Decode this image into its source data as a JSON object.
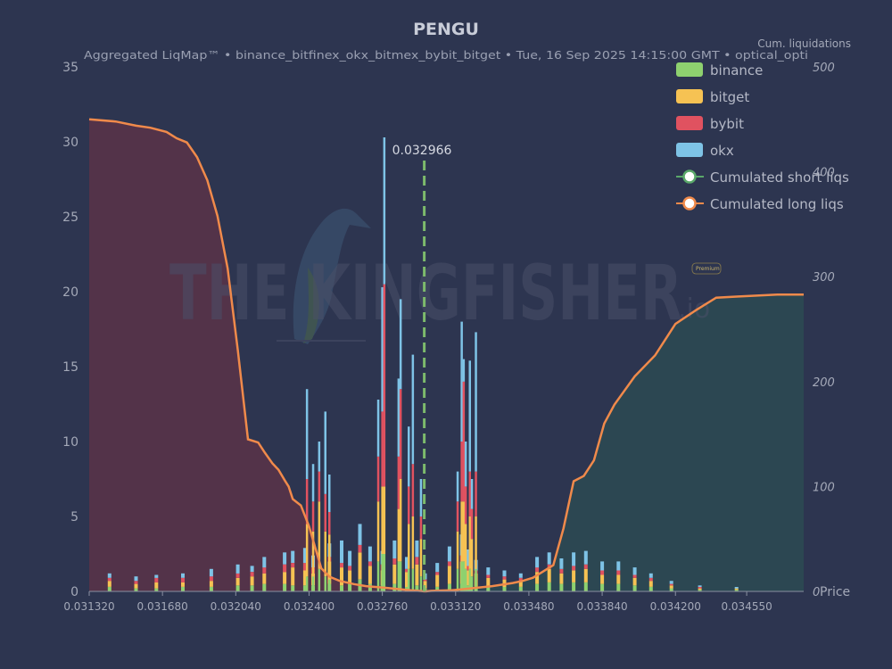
{
  "title": "PENGU",
  "subtitle": "Aggregated LiqMap™  •  binance_bitfinex_okx_bitmex_bybit_bitget  •  Tue, 16 Sep 2025 14:15:00 GMT  •  optical_opti",
  "watermark": {
    "text": "THE KINGFISHER",
    "suffix": ".io",
    "badge": "Premium"
  },
  "colors": {
    "background": "#2d3550",
    "binance": "#8ed16f",
    "bitget": "#f6c253",
    "bybit": "#e05260",
    "okx": "#7ec3e6",
    "cum_line": "#f08a4b",
    "short_fill": "#5b3248",
    "long_fill": "#2d4a52",
    "current_price": "#7dbb6c"
  },
  "chart_data": {
    "type": "bar",
    "x_ticks": [
      "0.031320",
      "0.031680",
      "0.032040",
      "0.032400",
      "0.032760",
      "0.033120",
      "0.033480",
      "0.033840",
      "0.034200",
      "0.034550"
    ],
    "x_tick_values": [
      0.03132,
      0.03168,
      0.03204,
      0.0324,
      0.03276,
      0.03312,
      0.03348,
      0.03384,
      0.0342,
      0.03455
    ],
    "xlim": [
      0.03132,
      0.03483
    ],
    "ylim": [
      0,
      35
    ],
    "y_ticks": [
      "0",
      "5",
      "10",
      "15",
      "20",
      "25",
      "30",
      "35"
    ],
    "y_tick_values": [
      0,
      5,
      10,
      15,
      20,
      25,
      30,
      35
    ],
    "y2_label": "Cum. liquidations",
    "y2_lim": [
      0,
      500
    ],
    "y2_ticks": [
      "0",
      "100",
      "200",
      "300",
      "400",
      "500"
    ],
    "y2_tick_values": [
      0,
      100,
      200,
      300,
      400,
      500
    ],
    "x_axis_end_label": "Price",
    "current_price": {
      "value": 0.032966,
      "label": "0.032966"
    },
    "legend_position": "top-right",
    "legend": [
      {
        "name": "binance",
        "kind": "bar",
        "color_key": "binance"
      },
      {
        "name": "bitget",
        "kind": "bar",
        "color_key": "bitget"
      },
      {
        "name": "bybit",
        "kind": "bar",
        "color_key": "bybit"
      },
      {
        "name": "okx",
        "kind": "bar",
        "color_key": "okx"
      },
      {
        "name": "Cumulated short liqs",
        "kind": "line",
        "ring": "#5aa86a"
      },
      {
        "name": "Cumulated long liqs",
        "kind": "line",
        "ring": "#f08a4b"
      }
    ],
    "bars": [
      {
        "x": 0.03142,
        "binance": 0.3,
        "bitget": 0.4,
        "bybit": 0.2,
        "okx": 0.3
      },
      {
        "x": 0.03155,
        "binance": 0.2,
        "bitget": 0.3,
        "bybit": 0.2,
        "okx": 0.3
      },
      {
        "x": 0.03165,
        "binance": 0.2,
        "bitget": 0.4,
        "bybit": 0.3,
        "okx": 0.2
      },
      {
        "x": 0.03178,
        "binance": 0.3,
        "bitget": 0.3,
        "bybit": 0.3,
        "okx": 0.3
      },
      {
        "x": 0.03192,
        "binance": 0.3,
        "bitget": 0.4,
        "bybit": 0.3,
        "okx": 0.5
      },
      {
        "x": 0.03205,
        "binance": 0.4,
        "bitget": 0.5,
        "bybit": 0.3,
        "okx": 0.6
      },
      {
        "x": 0.03212,
        "binance": 0.4,
        "bitget": 0.6,
        "bybit": 0.3,
        "okx": 0.4
      },
      {
        "x": 0.03218,
        "binance": 0.5,
        "bitget": 0.7,
        "bybit": 0.4,
        "okx": 0.7
      },
      {
        "x": 0.03228,
        "binance": 0.5,
        "bitget": 0.8,
        "bybit": 0.5,
        "okx": 0.8
      },
      {
        "x": 0.03232,
        "binance": 0.4,
        "bitget": 1.2,
        "bybit": 0.3,
        "okx": 0.8
      },
      {
        "x": 0.03238,
        "binance": 0.4,
        "bitget": 1.0,
        "bybit": 0.5,
        "okx": 1.0
      },
      {
        "x": 0.03242,
        "binance": 0.4,
        "bitget": 0.8,
        "bybit": 0.4,
        "okx": 0.8
      },
      {
        "x": 0.0325,
        "binance": 0.5,
        "bitget": 1.5,
        "bybit": 0.3,
        "okx": 0.9
      },
      {
        "x": 0.03256,
        "binance": 0.4,
        "bitget": 1.2,
        "bybit": 0.3,
        "okx": 1.5
      },
      {
        "x": 0.0326,
        "binance": 0.5,
        "bitget": 0.9,
        "bybit": 0.3,
        "okx": 1.0
      },
      {
        "x": 0.03265,
        "binance": 0.8,
        "bitget": 1.8,
        "bybit": 0.5,
        "okx": 1.4
      },
      {
        "x": 0.0327,
        "binance": 0.5,
        "bitget": 1.2,
        "bybit": 0.3,
        "okx": 1.0
      },
      {
        "x": 0.03276,
        "binance": 0.4,
        "bitget": 1.0,
        "bybit": 0.4,
        "okx": 0.9
      },
      {
        "x": 0.03282,
        "binance": 0.5,
        "bitget": 1.3,
        "bybit": 0.4,
        "okx": 1.2
      },
      {
        "x": 0.03288,
        "binance": 0.3,
        "bitget": 1.0,
        "bybit": 0.2,
        "okx": 0.8
      },
      {
        "x": 0.03293,
        "binance": 0.4,
        "bitget": 1.4,
        "bybit": 0.5,
        "okx": 1.1
      },
      {
        "x": 0.03297,
        "binance": 0.2,
        "bitget": 0.5,
        "bybit": 0.1,
        "okx": 0.4
      },
      {
        "x": 0.03303,
        "binance": 0.3,
        "bitget": 0.8,
        "bybit": 0.2,
        "okx": 0.6
      },
      {
        "x": 0.03309,
        "binance": 0.5,
        "bitget": 1.2,
        "bybit": 0.3,
        "okx": 1.0
      },
      {
        "x": 0.03315,
        "binance": 0.5,
        "bitget": 1.5,
        "bybit": 0.4,
        "okx": 1.4
      },
      {
        "x": 0.03318,
        "binance": 0.4,
        "bitget": 1.0,
        "bybit": 0.3,
        "okx": 1.1
      },
      {
        "x": 0.03322,
        "binance": 0.3,
        "bitget": 0.9,
        "bybit": 0.2,
        "okx": 0.7
      },
      {
        "x": 0.03328,
        "binance": 0.3,
        "bitget": 0.6,
        "bybit": 0.2,
        "okx": 0.5
      },
      {
        "x": 0.03336,
        "binance": 0.3,
        "bitget": 0.5,
        "bybit": 0.2,
        "okx": 0.4
      },
      {
        "x": 0.03344,
        "binance": 0.3,
        "bitget": 0.4,
        "bybit": 0.2,
        "okx": 0.3
      },
      {
        "x": 0.03352,
        "binance": 0.5,
        "bitget": 0.8,
        "bybit": 0.3,
        "okx": 0.7
      },
      {
        "x": 0.03358,
        "binance": 0.6,
        "bitget": 0.9,
        "bybit": 0.3,
        "okx": 0.8
      },
      {
        "x": 0.03364,
        "binance": 0.5,
        "bitget": 0.7,
        "bybit": 0.3,
        "okx": 0.7
      },
      {
        "x": 0.0337,
        "binance": 0.6,
        "bitget": 0.8,
        "bybit": 0.3,
        "okx": 0.9
      },
      {
        "x": 0.03376,
        "binance": 0.6,
        "bitget": 0.9,
        "bybit": 0.3,
        "okx": 0.9
      },
      {
        "x": 0.03384,
        "binance": 0.5,
        "bitget": 0.6,
        "bybit": 0.3,
        "okx": 0.6
      },
      {
        "x": 0.03392,
        "binance": 0.5,
        "bitget": 0.6,
        "bybit": 0.3,
        "okx": 0.6
      },
      {
        "x": 0.034,
        "binance": 0.4,
        "bitget": 0.5,
        "bybit": 0.2,
        "okx": 0.5
      },
      {
        "x": 0.03408,
        "binance": 0.3,
        "bitget": 0.4,
        "bybit": 0.2,
        "okx": 0.3
      },
      {
        "x": 0.03418,
        "binance": 0.2,
        "bitget": 0.2,
        "bybit": 0.1,
        "okx": 0.2
      },
      {
        "x": 0.03432,
        "binance": 0.1,
        "bitget": 0.1,
        "bybit": 0.1,
        "okx": 0.1
      },
      {
        "x": 0.0345,
        "binance": 0.1,
        "bitget": 0.1,
        "bybit": 0.0,
        "okx": 0.1
      }
    ],
    "spikes": [
      {
        "x": 0.03239,
        "binance": 1.0,
        "bitget": 3.5,
        "bybit": 3.0,
        "okx": 6.0
      },
      {
        "x": 0.03242,
        "binance": 1.0,
        "bitget": 3.0,
        "bybit": 2.0,
        "okx": 2.5
      },
      {
        "x": 0.03245,
        "binance": 1.5,
        "bitget": 4.5,
        "bybit": 2.0,
        "okx": 2.0
      },
      {
        "x": 0.03248,
        "binance": 1.0,
        "bitget": 3.0,
        "bybit": 2.5,
        "okx": 5.5
      },
      {
        "x": 0.0325,
        "binance": 0.8,
        "bitget": 3.0,
        "bybit": 1.5,
        "okx": 2.5
      },
      {
        "x": 0.03274,
        "binance": 2.0,
        "bitget": 4.0,
        "bybit": 3.0,
        "okx": 3.8
      },
      {
        "x": 0.03276,
        "binance": 2.5,
        "bitget": 4.5,
        "bybit": 5.0,
        "okx": 8.3
      },
      {
        "x": 0.03277,
        "binance": 2.5,
        "bitget": 4.5,
        "bybit": 13.5,
        "okx": 9.8
      },
      {
        "x": 0.03284,
        "binance": 2.0,
        "bitget": 3.5,
        "bybit": 3.5,
        "okx": 5.2
      },
      {
        "x": 0.03285,
        "binance": 2.0,
        "bitget": 5.5,
        "bybit": 6.0,
        "okx": 6.0
      },
      {
        "x": 0.03289,
        "binance": 1.5,
        "bitget": 3.0,
        "bybit": 2.5,
        "okx": 4.0
      },
      {
        "x": 0.03291,
        "binance": 1.5,
        "bitget": 3.5,
        "bybit": 3.5,
        "okx": 7.3
      },
      {
        "x": 0.03295,
        "binance": 1.0,
        "bitget": 2.5,
        "bybit": 1.5,
        "okx": 2.5
      },
      {
        "x": 0.03313,
        "binance": 1.5,
        "bitget": 2.5,
        "bybit": 2.0,
        "okx": 2.0
      },
      {
        "x": 0.03315,
        "binance": 2.0,
        "bitget": 4.0,
        "bybit": 4.0,
        "okx": 8.0
      },
      {
        "x": 0.03316,
        "binance": 2.0,
        "bitget": 4.0,
        "bybit": 8.0,
        "okx": 1.5
      },
      {
        "x": 0.03317,
        "binance": 1.5,
        "bitget": 3.0,
        "bybit": 2.5,
        "okx": 3.0
      },
      {
        "x": 0.03319,
        "binance": 1.5,
        "bitget": 3.5,
        "bybit": 3.0,
        "okx": 7.4
      },
      {
        "x": 0.0332,
        "binance": 1.0,
        "bitget": 2.5,
        "bybit": 2.0,
        "okx": 2.0
      },
      {
        "x": 0.03322,
        "binance": 1.5,
        "bitget": 3.5,
        "bybit": 3.0,
        "okx": 9.3
      }
    ],
    "cumulated_short_liqs": {
      "x": [
        0.03132,
        0.03145,
        0.03155,
        0.03162,
        0.0317,
        0.03175,
        0.0318,
        0.03185,
        0.0319,
        0.03195,
        0.032,
        0.03205,
        0.0321,
        0.03215,
        0.03218,
        0.03222,
        0.03225,
        0.03228,
        0.0323,
        0.03232,
        0.03236,
        0.0324,
        0.03243,
        0.03246,
        0.0325,
        0.03255,
        0.03262,
        0.03268,
        0.03274,
        0.0328,
        0.03285,
        0.0329,
        0.03294,
        0.03297
      ],
      "y": [
        450,
        448,
        444,
        442,
        438,
        432,
        428,
        414,
        392,
        358,
        308,
        230,
        145,
        142,
        133,
        122,
        116,
        106,
        100,
        88,
        82,
        62,
        42,
        22,
        14,
        10,
        7,
        5,
        4,
        3,
        2,
        1,
        0.5,
        0
      ]
    },
    "cumulated_long_liqs": {
      "x": [
        0.03297,
        0.033,
        0.0331,
        0.0332,
        0.0333,
        0.0334,
        0.03345,
        0.0335,
        0.0336,
        0.03365,
        0.0337,
        0.03375,
        0.0338,
        0.03385,
        0.0339,
        0.034,
        0.0341,
        0.0342,
        0.0343,
        0.0344,
        0.0345,
        0.0346,
        0.0347,
        0.03483
      ],
      "y": [
        0,
        0.5,
        1,
        3,
        5,
        8,
        10,
        13,
        25,
        60,
        105,
        110,
        125,
        160,
        178,
        205,
        225,
        255,
        268,
        280,
        281,
        282,
        283,
        283
      ]
    }
  }
}
